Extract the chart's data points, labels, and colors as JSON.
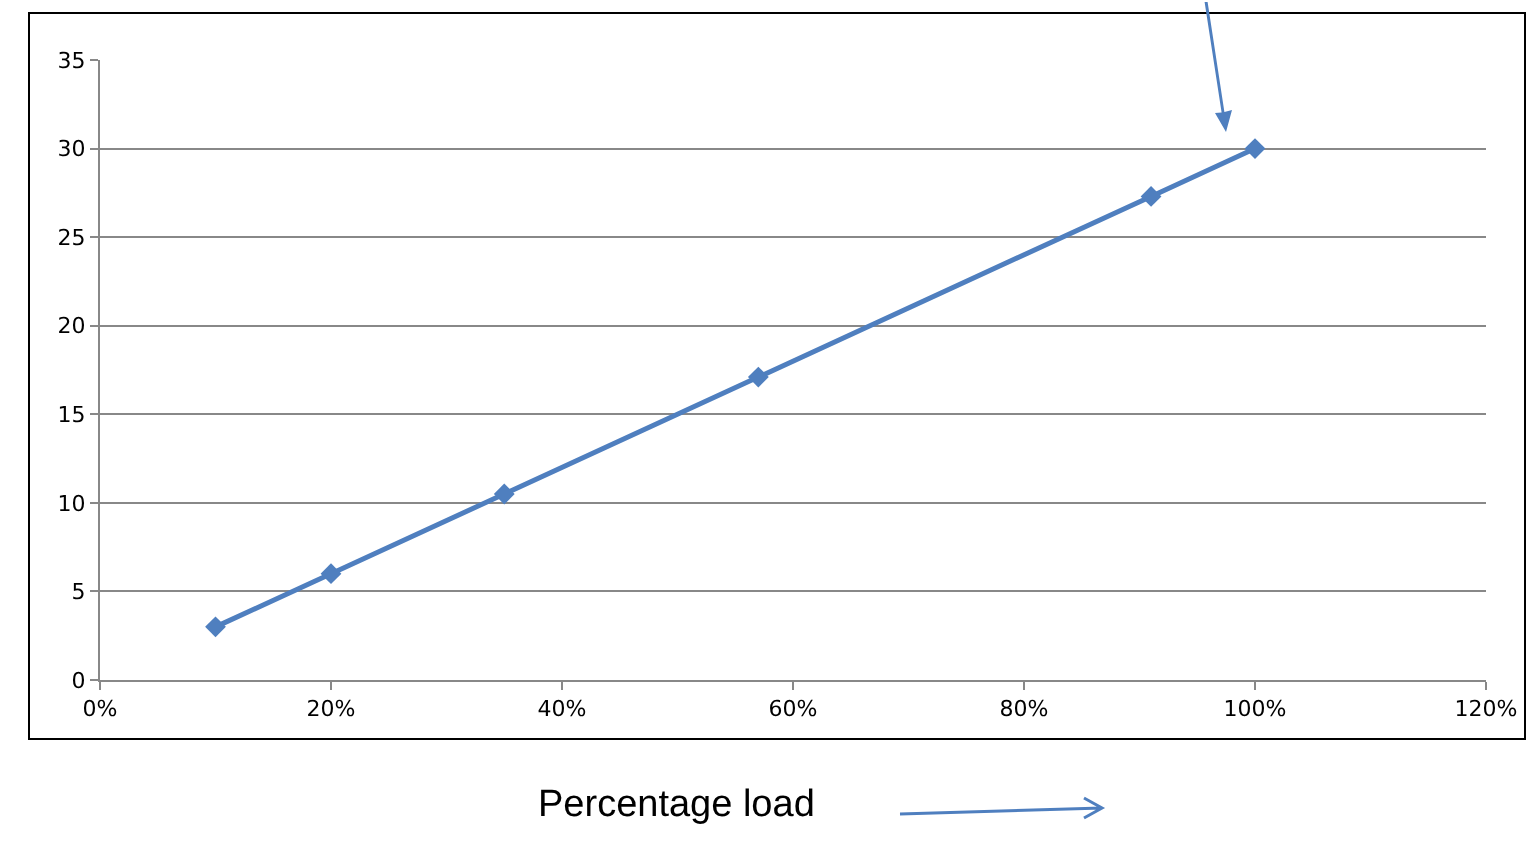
{
  "chart_data": {
    "type": "line",
    "xlabel": "Percentage load",
    "x": [
      0.1,
      0.2,
      0.35,
      0.57,
      0.91,
      1.0
    ],
    "series": [
      {
        "color": "#4f7fbf",
        "values": [
          3,
          6,
          10.5,
          17.1,
          27.3,
          30
        ]
      }
    ],
    "xlim": [
      0,
      1.2
    ],
    "xticks": [
      {
        "value": 0,
        "label": "0%"
      },
      {
        "value": 0.2,
        "label": "20%"
      },
      {
        "value": 0.4,
        "label": "40%"
      },
      {
        "value": 0.6,
        "label": "60%"
      },
      {
        "value": 0.8,
        "label": "80%"
      },
      {
        "value": 1.0,
        "label": "100%"
      },
      {
        "value": 1.2,
        "label": "120%"
      }
    ],
    "ylim": [
      0,
      35
    ],
    "yticks": [
      0,
      5,
      10,
      15,
      20,
      25,
      30,
      35
    ],
    "grid": "y",
    "marker": "diamond",
    "line_style": "solid",
    "legend": false
  }
}
